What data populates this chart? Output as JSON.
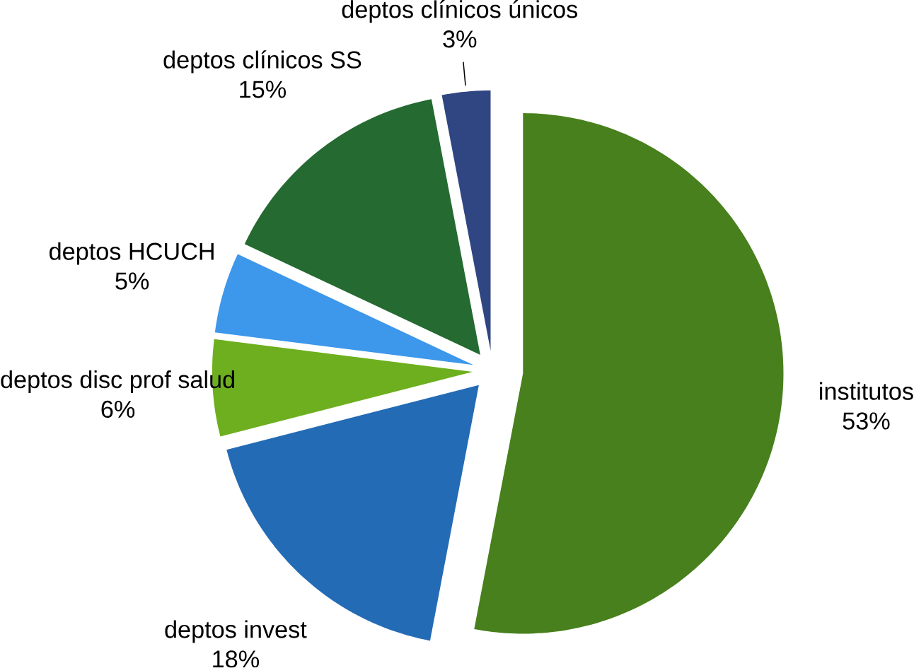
{
  "chart_data": {
    "type": "pie",
    "categories": [
      "institutos",
      "deptos invest",
      "deptos disc prof salud",
      "deptos HCUCH",
      "deptos clínicos SS",
      "deptos clínicos únicos"
    ],
    "values": [
      53,
      18,
      6,
      5,
      15,
      3
    ],
    "value_labels": [
      "53%",
      "18%",
      "6%",
      "5%",
      "15%",
      "3%"
    ],
    "colors": [
      "#47801c",
      "#236bb5",
      "#6daf1e",
      "#3d97ea",
      "#246a31",
      "#304682"
    ]
  }
}
